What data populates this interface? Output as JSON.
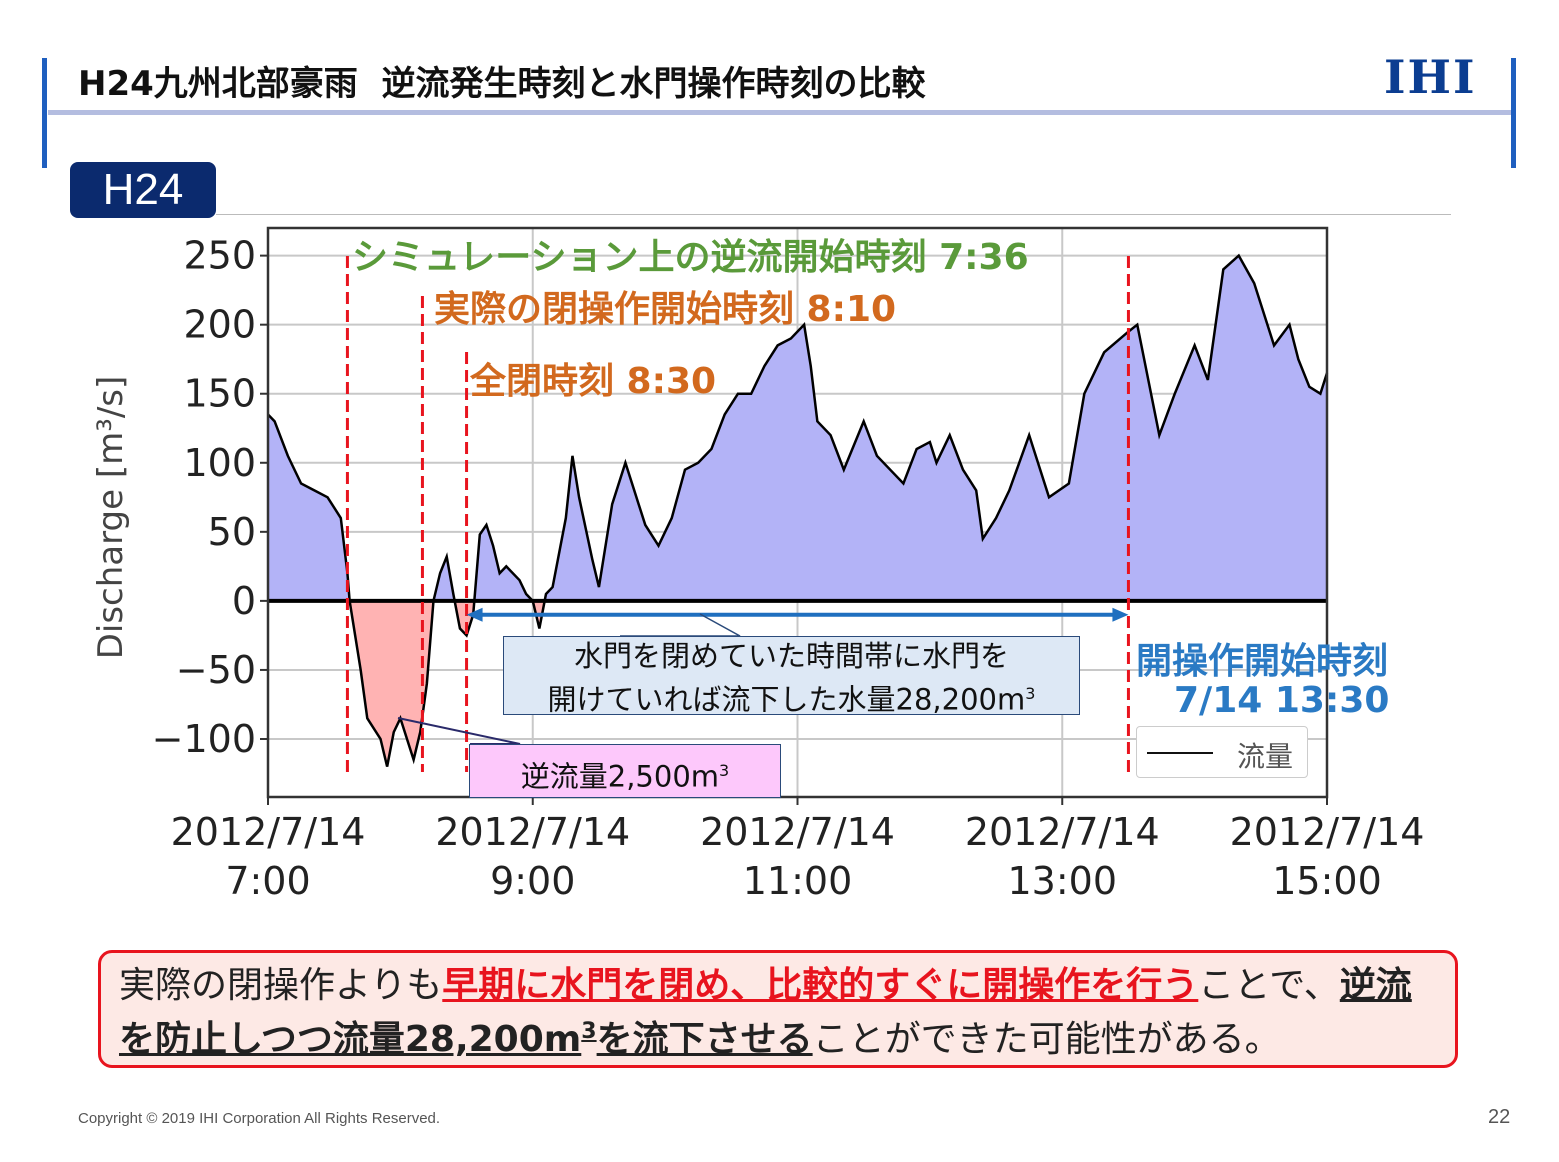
{
  "header": {
    "title": "H24九州北部豪雨  逆流発生時刻と水門操作時刻の比較",
    "logo": "IHI",
    "badge": "H24"
  },
  "chart_data": {
    "type": "area",
    "ylabel": "Discharge [m³/s]",
    "ylim": [
      -142,
      270
    ],
    "yticks": [
      250,
      200,
      150,
      100,
      50,
      0,
      -50,
      -100
    ],
    "ytick_labels": [
      "250",
      "200",
      "150",
      "100",
      "50",
      "0",
      "−50",
      "−100"
    ],
    "xlim_minutes_from_0700": [
      0,
      480
    ],
    "xticks_minutes": [
      0,
      120,
      240,
      360,
      480
    ],
    "xtick_labels": [
      [
        "2012/7/14",
        "7:00"
      ],
      [
        "2012/7/14",
        "9:00"
      ],
      [
        "2012/7/14",
        "11:00"
      ],
      [
        "2012/7/14",
        "13:00"
      ],
      [
        "2012/7/14",
        "15:00"
      ]
    ],
    "grid": true,
    "legend": {
      "position": "bottom-right",
      "entries": [
        "流量"
      ]
    },
    "series": [
      {
        "name": "流量",
        "x_minutes": [
          0,
          3,
          9,
          15,
          21,
          27,
          33,
          36,
          37,
          42,
          45,
          51,
          54,
          57,
          60,
          63,
          66,
          69,
          72,
          75,
          78,
          81,
          84,
          87,
          90,
          93,
          96,
          99,
          102,
          105,
          108,
          114,
          117,
          120,
          123,
          126,
          129,
          135,
          138,
          141,
          147,
          150,
          156,
          162,
          168,
          171,
          177,
          183,
          189,
          195,
          201,
          207,
          213,
          219,
          225,
          231,
          237,
          243,
          246,
          249,
          255,
          261,
          270,
          276,
          282,
          288,
          294,
          300,
          303,
          309,
          315,
          321,
          324,
          330,
          336,
          345,
          354,
          363,
          370,
          379,
          390,
          394,
          404,
          411,
          420,
          426,
          433,
          440,
          447,
          456,
          463,
          467,
          472,
          477,
          480
        ],
        "values": [
          135,
          130,
          105,
          85,
          80,
          75,
          60,
          20,
          0,
          -50,
          -85,
          -100,
          -120,
          -95,
          -85,
          -100,
          -115,
          -95,
          -60,
          0,
          20,
          32,
          5,
          -20,
          -25,
          -10,
          48,
          55,
          40,
          20,
          25,
          15,
          5,
          0,
          -20,
          5,
          10,
          60,
          105,
          75,
          30,
          10,
          70,
          100,
          70,
          55,
          40,
          60,
          95,
          100,
          110,
          135,
          150,
          150,
          170,
          185,
          190,
          200,
          170,
          130,
          120,
          95,
          130,
          105,
          95,
          85,
          110,
          115,
          100,
          120,
          95,
          80,
          45,
          60,
          80,
          120,
          75,
          85,
          150,
          180,
          195,
          200,
          120,
          150,
          185,
          160,
          240,
          250,
          230,
          185,
          200,
          175,
          155,
          150,
          165
        ]
      }
    ],
    "vlines_minutes": [
      36,
      70,
      90,
      390
    ],
    "annotations": {
      "sim_start": "シミュレーション上の逆流開始時刻 7:36",
      "actual_close": "実際の閉操作開始時刻 8:10",
      "full_close": "全閉時刻 8:30",
      "open_start_line1": "開操作開始時刻",
      "open_start_line2": "7/14 13:30",
      "volume_box_line1": "水門を閉めていた時間帯に水門を",
      "volume_box_line2": "開けていれば流下した水量28,200m",
      "backflow_box": "逆流量2,500m",
      "sup": "3"
    },
    "colors": {
      "positive": "#b3b3f7",
      "negative": "#ffb3b3",
      "vline": "#e8141e",
      "arrow": "#1f6fbf"
    }
  },
  "callout": {
    "p1": "実際の閉操作よりも",
    "p2": "早期に水門を閉め、比較的すぐに開操作を行う",
    "p3": "ことで、",
    "p4": "逆流",
    "p5": "を防止しつつ流量28,200m",
    "p5sup": "3",
    "p6": "を流下させる",
    "p7": "ことができた可能性がある。"
  },
  "footer": {
    "copyright": "Copyright © 2019 IHI Corporation All Rights Reserved.",
    "page": "22"
  }
}
